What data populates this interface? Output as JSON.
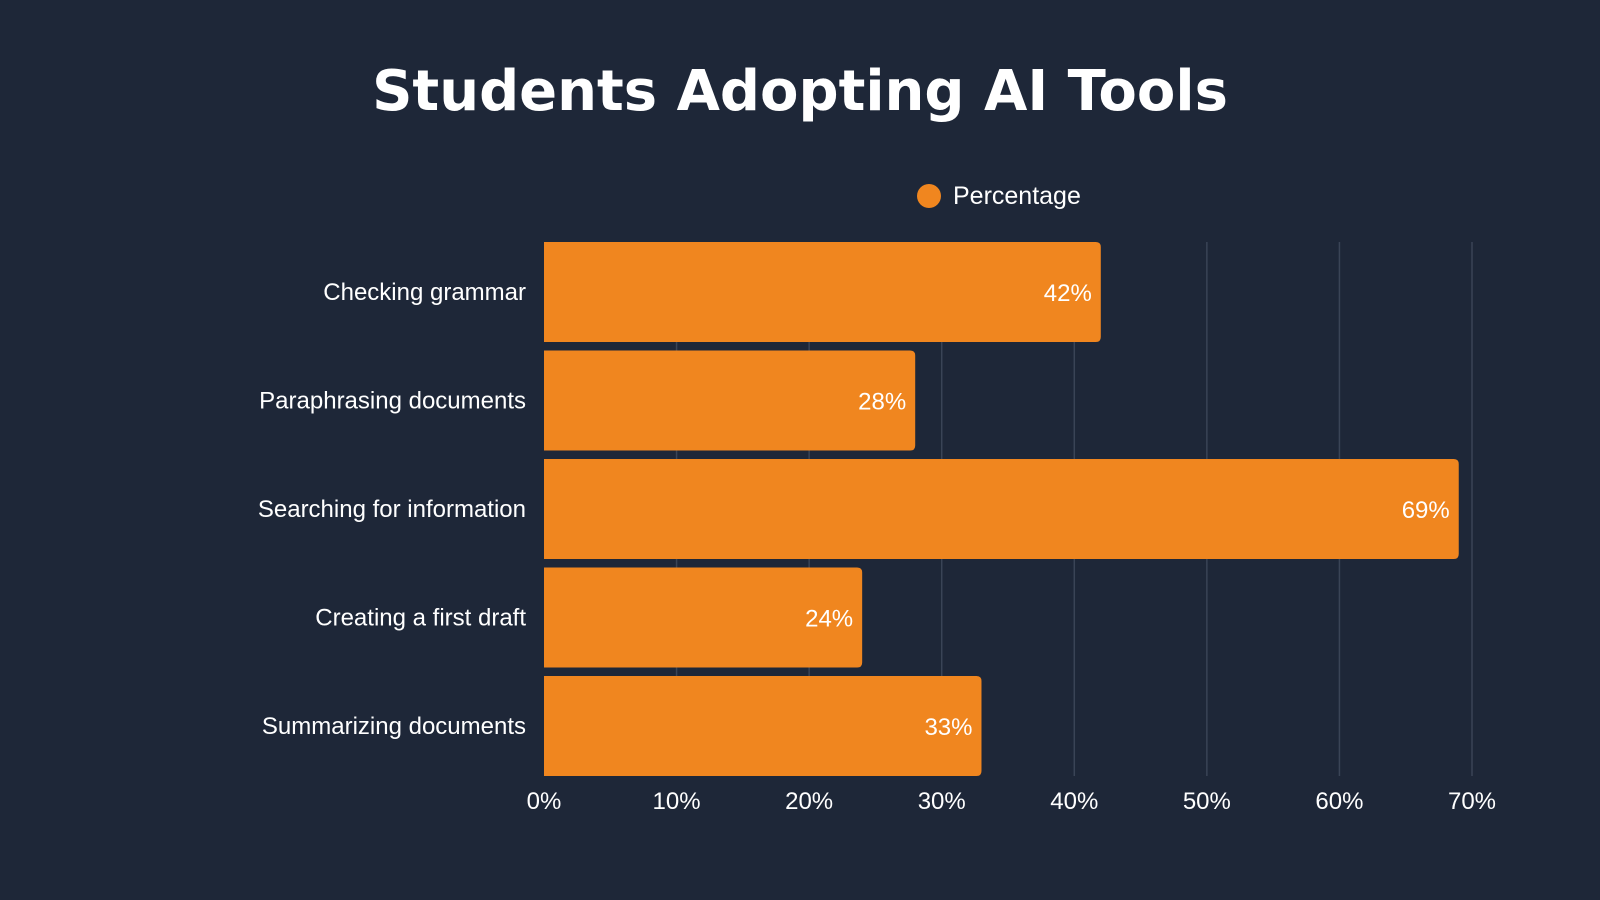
{
  "chart_data": {
    "type": "bar",
    "orientation": "horizontal",
    "title": "Students Adopting AI Tools",
    "categories": [
      "Checking grammar",
      "Paraphrasing documents",
      "Searching for information",
      "Creating a first draft",
      "Summarizing documents"
    ],
    "series": [
      {
        "name": "Percentage",
        "values": [
          42,
          28,
          69,
          24,
          33
        ],
        "data_labels": [
          "42%",
          "28%",
          "69%",
          "24%",
          "33%"
        ],
        "color": "#f0861f"
      }
    ],
    "xlim": [
      0,
      70
    ],
    "x_ticks": [
      0,
      10,
      20,
      30,
      40,
      50,
      60,
      70
    ],
    "x_tick_labels": [
      "0%",
      "10%",
      "20%",
      "30%",
      "40%",
      "50%",
      "60%",
      "70%"
    ],
    "xlabel": "",
    "ylabel": "",
    "grid": "vertical",
    "legend_position": "top-center",
    "colors": {
      "background": "#1e2738",
      "bar": "#f0861f",
      "text": "#ffffff",
      "grid": "#3a4456"
    }
  }
}
